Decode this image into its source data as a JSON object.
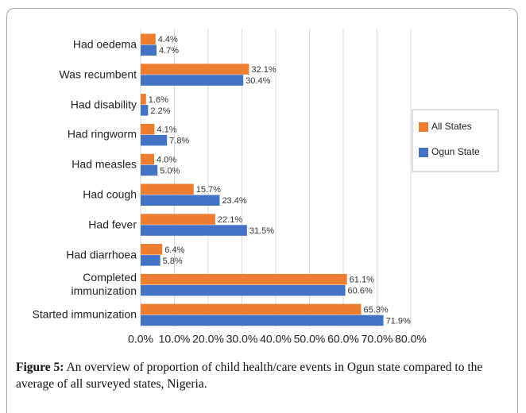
{
  "chart_data": {
    "type": "barh",
    "categories": [
      "Had oedema",
      "Was recumbent",
      "Had disability",
      "Had ringworm",
      "Had measles",
      "Had cough",
      "Had fever",
      "Had diarrhoea",
      "Completed immunization",
      "Started immunization"
    ],
    "series": [
      {
        "name": "All States",
        "color": "#ed7d31",
        "values": [
          4.4,
          32.1,
          1.6,
          4.1,
          4.0,
          15.7,
          22.1,
          6.4,
          61.1,
          65.3
        ],
        "value_labels": [
          "4.4%",
          "32.1%",
          "1.6%",
          "4.1%",
          "4.0%",
          "15.7%",
          "22.1%",
          "6.4%",
          "61.1%",
          "65.3%"
        ]
      },
      {
        "name": "Ogun State",
        "color": "#4472c4",
        "values": [
          4.7,
          30.4,
          2.2,
          7.8,
          5.0,
          23.4,
          31.5,
          5.8,
          60.6,
          71.9
        ],
        "value_labels": [
          "4.7%",
          "30.4%",
          "2.2%",
          "7.8%",
          "5.0%",
          "23.4%",
          "31.5%",
          "5.8%",
          "60.6%",
          "71.9%"
        ]
      }
    ],
    "xlim": [
      0,
      80
    ],
    "xticks": [
      {
        "value": 0,
        "label": "0.0%"
      },
      {
        "value": 10,
        "label": "10.0%"
      },
      {
        "value": 20,
        "label": "20.0%"
      },
      {
        "value": 30,
        "label": "30.0%"
      },
      {
        "value": 40,
        "label": "40.0%"
      },
      {
        "value": 50,
        "label": "50.0%"
      },
      {
        "value": 60,
        "label": "60.0%"
      },
      {
        "value": 70,
        "label": "70.0%"
      },
      {
        "value": 80,
        "label": "80.0%"
      }
    ],
    "grid": true,
    "legend": "right"
  },
  "caption": {
    "label": "Figure 5:",
    "text": "An overview of proportion of child health/care events in Ogun state compared to the average of all surveyed states, Nigeria."
  }
}
